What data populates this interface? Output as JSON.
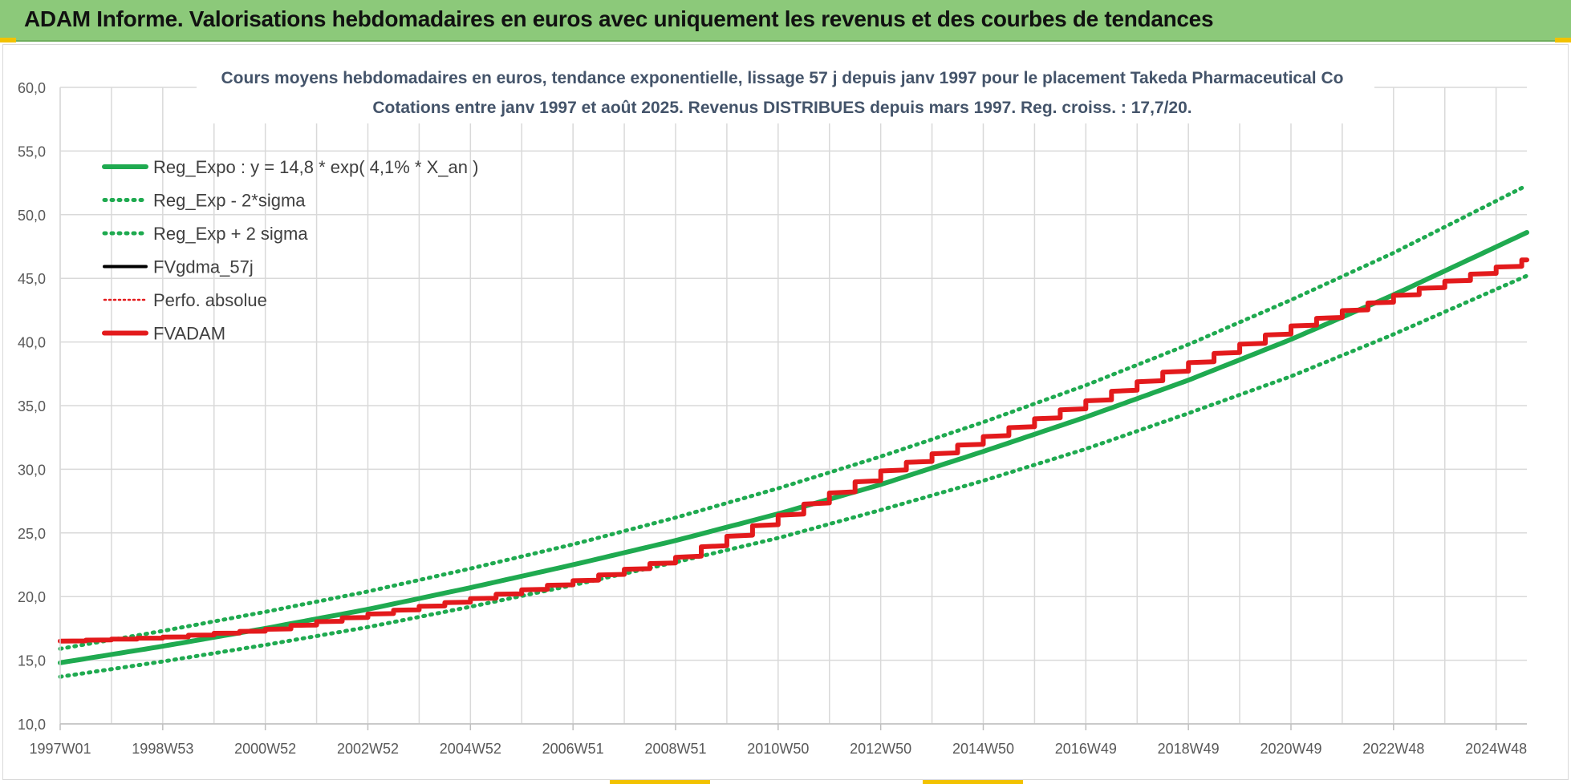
{
  "banner": {
    "title": "ADAM Informe. Valorisations hebdomadaires en euros avec uniquement les revenus et des courbes de tendances"
  },
  "chart_data": {
    "type": "line",
    "title_line1": "Cours moyens hebdomadaires en euros, tendance exponentielle, lissage 57 j depuis janv 1997  pour le placement Takeda Pharmaceutical Co",
    "title_line2": "Cotations entre janv 1997 et août 2025.  Revenus DISTRIBUES depuis mars 1997. Reg. croiss. : 17,7/20.",
    "xlabel": "",
    "ylabel": "",
    "x_range": [
      1997.0,
      2025.6
    ],
    "ylim": [
      10,
      60
    ],
    "grid": true,
    "legend_position": "top-left",
    "y_ticks": [
      "10,0",
      "15,0",
      "20,0",
      "25,0",
      "30,0",
      "35,0",
      "40,0",
      "45,0",
      "50,0",
      "55,0",
      "60,0"
    ],
    "x_tick_labels": [
      {
        "label": "1997W01",
        "x": 1997.0
      },
      {
        "label": "1998W53",
        "x": 1999.0
      },
      {
        "label": "2000W52",
        "x": 2001.0
      },
      {
        "label": "2002W52",
        "x": 2003.0
      },
      {
        "label": "2004W52",
        "x": 2005.0
      },
      {
        "label": "2006W51",
        "x": 2007.0
      },
      {
        "label": "2008W51",
        "x": 2009.0
      },
      {
        "label": "2010W50",
        "x": 2011.0
      },
      {
        "label": "2012W50",
        "x": 2013.0
      },
      {
        "label": "2014W50",
        "x": 2015.0
      },
      {
        "label": "2016W49",
        "x": 2017.0
      },
      {
        "label": "2018W49",
        "x": 2019.0
      },
      {
        "label": "2020W49",
        "x": 2021.0
      },
      {
        "label": "2022W48",
        "x": 2023.0
      },
      {
        "label": "2024W48",
        "x": 2025.0
      }
    ],
    "series": [
      {
        "name": "Reg_Expo : y = 14,8 * exp( 4,1% *  X_an )",
        "color": "#1faa50",
        "style": "solid",
        "x": [
          1997.0,
          1999.0,
          2001.0,
          2003.0,
          2005.0,
          2007.0,
          2009.0,
          2011.0,
          2013.0,
          2015.0,
          2017.0,
          2019.0,
          2021.0,
          2023.0,
          2025.6
        ],
        "values": [
          14.8,
          16.1,
          17.5,
          19.0,
          20.7,
          22.5,
          24.4,
          26.5,
          28.8,
          31.4,
          34.1,
          37.0,
          40.2,
          43.7,
          48.6
        ]
      },
      {
        "name": "Reg_Exp - 2*sigma",
        "color": "#1faa50",
        "style": "dotted",
        "x": [
          1997.0,
          1999.0,
          2001.0,
          2003.0,
          2005.0,
          2007.0,
          2009.0,
          2011.0,
          2013.0,
          2015.0,
          2017.0,
          2019.0,
          2021.0,
          2023.0,
          2025.6
        ],
        "values": [
          13.7,
          14.9,
          16.2,
          17.6,
          19.2,
          20.9,
          22.7,
          24.6,
          26.8,
          29.1,
          31.6,
          34.4,
          37.3,
          40.6,
          45.2
        ]
      },
      {
        "name": "Reg_Exp + 2 sigma",
        "color": "#1faa50",
        "style": "dotted",
        "x": [
          1997.0,
          1999.0,
          2001.0,
          2003.0,
          2005.0,
          2007.0,
          2009.0,
          2011.0,
          2013.0,
          2015.0,
          2017.0,
          2019.0,
          2021.0,
          2023.0,
          2025.6
        ],
        "values": [
          15.9,
          17.3,
          18.8,
          20.4,
          22.2,
          24.1,
          26.2,
          28.5,
          31.0,
          33.7,
          36.6,
          39.8,
          43.3,
          47.0,
          52.3
        ]
      },
      {
        "name": "FVgdma_57j",
        "color": "#000000",
        "style": "solid",
        "x": [
          1997.0,
          1999.0,
          2001.0,
          2003.0,
          2005.0,
          2007.0,
          2009.0,
          2011.0,
          2013.0,
          2015.0,
          2017.0,
          2019.0,
          2021.0,
          2023.0,
          2025.6
        ],
        "values": [
          16.5,
          16.8,
          17.4,
          18.6,
          19.8,
          21.2,
          23.0,
          26.3,
          29.8,
          32.5,
          35.3,
          38.3,
          41.2,
          43.6,
          46.5
        ]
      },
      {
        "name": "Perfo. absolue",
        "color": "#e31a1c",
        "style": "dotted",
        "x": [
          1997.0,
          1999.0,
          2001.0,
          2003.0,
          2005.0,
          2007.0,
          2009.0,
          2011.0,
          2013.0,
          2015.0,
          2017.0,
          2019.0,
          2021.0,
          2023.0,
          2025.6
        ],
        "values": [
          16.5,
          16.8,
          17.4,
          18.6,
          19.8,
          21.2,
          23.0,
          26.3,
          29.8,
          32.5,
          35.3,
          38.3,
          41.2,
          43.6,
          46.5
        ]
      },
      {
        "name": "FVADAM",
        "color": "#e31a1c",
        "style": "solid",
        "x": [
          1997.0,
          1999.0,
          2001.0,
          2003.0,
          2005.0,
          2007.0,
          2009.0,
          2011.0,
          2013.0,
          2015.0,
          2017.0,
          2019.0,
          2021.0,
          2023.0,
          2025.6
        ],
        "values": [
          16.5,
          16.8,
          17.4,
          18.6,
          19.8,
          21.2,
          23.0,
          26.3,
          29.8,
          32.5,
          35.3,
          38.3,
          41.2,
          43.6,
          46.5
        ]
      }
    ]
  }
}
